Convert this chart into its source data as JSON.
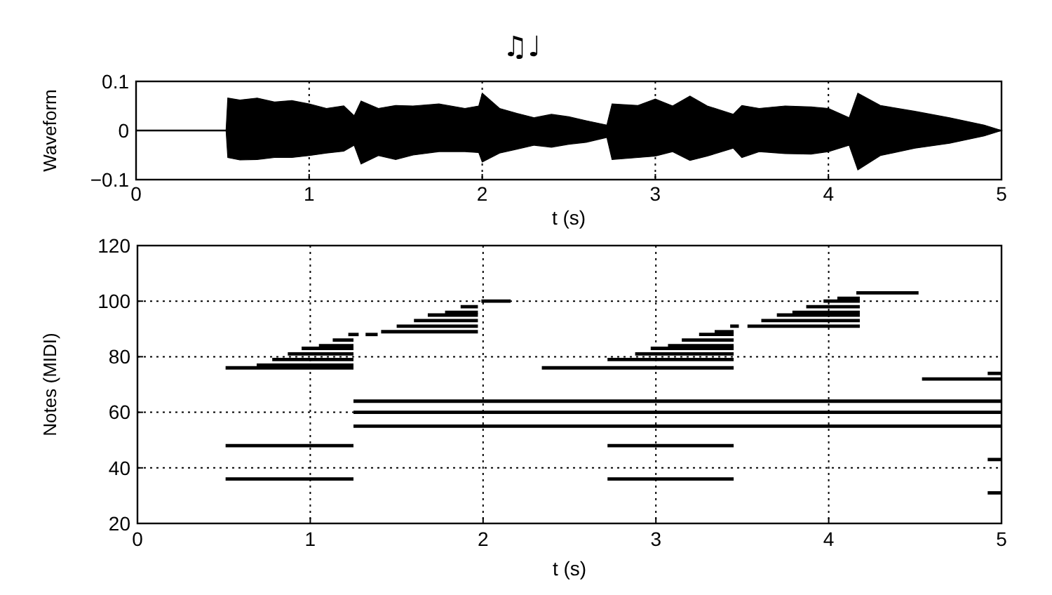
{
  "chart_data": [
    {
      "type": "line",
      "title": "♫♩",
      "xlabel": "t (s)",
      "ylabel": "Waveform",
      "x": [
        0,
        0.52,
        0.53,
        0.6,
        0.7,
        0.8,
        0.9,
        1.0,
        1.1,
        1.2,
        1.26,
        1.3,
        1.4,
        1.5,
        1.6,
        1.75,
        1.9,
        1.98,
        2.0,
        2.1,
        2.2,
        2.3,
        2.4,
        2.5,
        2.6,
        2.72,
        2.75,
        2.9,
        3.0,
        3.1,
        3.2,
        3.3,
        3.45,
        3.5,
        3.6,
        3.75,
        3.9,
        4.0,
        4.12,
        4.17,
        4.3,
        4.5,
        4.7,
        4.9,
        5.0
      ],
      "series": [
        {
          "color": "#000000",
          "values": [
            0,
            0,
            0,
            0,
            0,
            0,
            0,
            0,
            0,
            0,
            0,
            0,
            0,
            0,
            0,
            0,
            0,
            0,
            0,
            0,
            0,
            0,
            0,
            0,
            0,
            0,
            0,
            0,
            0,
            0,
            0,
            0,
            0,
            0,
            0,
            0,
            0,
            0,
            0,
            0,
            0,
            0,
            0,
            0,
            0
          ],
          "upper": [
            0,
            0,
            0.066,
            0.062,
            0.066,
            0.058,
            0.061,
            0.054,
            0.045,
            0.05,
            0.03,
            0.06,
            0.045,
            0.051,
            0.05,
            0.054,
            0.045,
            0.05,
            0.076,
            0.045,
            0.035,
            0.026,
            0.033,
            0.028,
            0.02,
            0.011,
            0.054,
            0.051,
            0.064,
            0.05,
            0.07,
            0.05,
            0.033,
            0.051,
            0.045,
            0.05,
            0.048,
            0.045,
            0.026,
            0.076,
            0.051,
            0.039,
            0.026,
            0.011,
            0
          ],
          "lower": [
            0,
            0,
            -0.055,
            -0.06,
            -0.059,
            -0.055,
            -0.055,
            -0.051,
            -0.046,
            -0.042,
            -0.03,
            -0.068,
            -0.051,
            -0.059,
            -0.05,
            -0.043,
            -0.043,
            -0.045,
            -0.064,
            -0.046,
            -0.038,
            -0.03,
            -0.034,
            -0.028,
            -0.024,
            -0.014,
            -0.059,
            -0.055,
            -0.052,
            -0.043,
            -0.061,
            -0.052,
            -0.036,
            -0.055,
            -0.043,
            -0.047,
            -0.048,
            -0.043,
            -0.03,
            -0.08,
            -0.051,
            -0.036,
            -0.026,
            -0.011,
            0
          ]
        }
      ],
      "xlim": [
        0,
        5
      ],
      "ylim": [
        -0.1,
        0.1
      ],
      "xticks": [
        0,
        1,
        2,
        3,
        4,
        5
      ],
      "yticks": [
        {
          "value": -0.1,
          "label": "−0.1"
        },
        0,
        0.1
      ],
      "grid": "x"
    },
    {
      "type": "line",
      "xlabel": "t (s)",
      "ylabel": "Notes (MIDI)",
      "color": "#000000",
      "series": [
        {
          "x": [
            0.51,
            1.25
          ],
          "values": [
            76,
            76
          ]
        },
        {
          "x": [
            0.69,
            1.25
          ],
          "values": [
            77,
            77
          ]
        },
        {
          "x": [
            0.78,
            1.25
          ],
          "values": [
            79,
            79
          ]
        },
        {
          "x": [
            0.87,
            1.25
          ],
          "values": [
            81,
            81
          ]
        },
        {
          "x": [
            0.95,
            1.25
          ],
          "values": [
            83,
            83
          ]
        },
        {
          "x": [
            1.05,
            1.25
          ],
          "values": [
            84,
            84
          ]
        },
        {
          "x": [
            1.13,
            1.25
          ],
          "values": [
            86,
            86
          ]
        },
        {
          "x": [
            1.22,
            1.28
          ],
          "values": [
            88,
            88
          ]
        },
        {
          "x": [
            1.32,
            1.39
          ],
          "values": [
            88,
            88
          ]
        },
        {
          "x": [
            1.41,
            1.97
          ],
          "values": [
            89,
            89
          ]
        },
        {
          "x": [
            1.5,
            1.97
          ],
          "values": [
            91,
            91
          ]
        },
        {
          "x": [
            1.6,
            1.97
          ],
          "values": [
            93,
            93
          ]
        },
        {
          "x": [
            1.68,
            1.97
          ],
          "values": [
            95,
            95
          ]
        },
        {
          "x": [
            1.78,
            1.97
          ],
          "values": [
            96,
            96
          ]
        },
        {
          "x": [
            1.87,
            1.97
          ],
          "values": [
            98,
            98
          ]
        },
        {
          "x": [
            1.99,
            2.16
          ],
          "values": [
            100,
            100
          ]
        },
        {
          "x": [
            0.51,
            1.25
          ],
          "values": [
            48,
            48
          ]
        },
        {
          "x": [
            0.51,
            1.25
          ],
          "values": [
            36,
            36
          ]
        },
        {
          "x": [
            1.25,
            5
          ],
          "values": [
            55,
            55
          ]
        },
        {
          "x": [
            1.25,
            5
          ],
          "values": [
            60,
            60
          ]
        },
        {
          "x": [
            1.25,
            5
          ],
          "values": [
            64,
            64
          ]
        },
        {
          "x": [
            2.34,
            3.45
          ],
          "values": [
            76,
            76
          ]
        },
        {
          "x": [
            2.72,
            3.45
          ],
          "values": [
            79,
            79
          ]
        },
        {
          "x": [
            2.88,
            3.45
          ],
          "values": [
            81,
            81
          ]
        },
        {
          "x": [
            2.97,
            3.45
          ],
          "values": [
            83,
            83
          ]
        },
        {
          "x": [
            3.07,
            3.45
          ],
          "values": [
            84,
            84
          ]
        },
        {
          "x": [
            3.15,
            3.45
          ],
          "values": [
            86,
            86
          ]
        },
        {
          "x": [
            3.25,
            3.45
          ],
          "values": [
            88,
            88
          ]
        },
        {
          "x": [
            3.34,
            3.45
          ],
          "values": [
            89,
            89
          ]
        },
        {
          "x": [
            3.43,
            3.48
          ],
          "values": [
            91,
            91
          ]
        },
        {
          "x": [
            3.53,
            4.18
          ],
          "values": [
            91,
            91
          ]
        },
        {
          "x": [
            3.61,
            4.18
          ],
          "values": [
            93,
            93
          ]
        },
        {
          "x": [
            3.7,
            4.18
          ],
          "values": [
            95,
            95
          ]
        },
        {
          "x": [
            3.79,
            4.18
          ],
          "values": [
            96,
            96
          ]
        },
        {
          "x": [
            3.87,
            4.18
          ],
          "values": [
            98,
            98
          ]
        },
        {
          "x": [
            3.97,
            4.18
          ],
          "values": [
            100,
            100
          ]
        },
        {
          "x": [
            4.05,
            4.18
          ],
          "values": [
            101,
            101
          ]
        },
        {
          "x": [
            4.16,
            4.52
          ],
          "values": [
            103,
            103
          ]
        },
        {
          "x": [
            2.72,
            3.45
          ],
          "values": [
            48,
            48
          ]
        },
        {
          "x": [
            2.72,
            3.45
          ],
          "values": [
            36,
            36
          ]
        },
        {
          "x": [
            4.54,
            5
          ],
          "values": [
            72,
            72
          ]
        },
        {
          "x": [
            4.92,
            5
          ],
          "values": [
            74,
            74
          ]
        },
        {
          "x": [
            4.92,
            5
          ],
          "values": [
            43,
            43
          ]
        },
        {
          "x": [
            4.92,
            5
          ],
          "values": [
            31,
            31
          ]
        }
      ],
      "xlim": [
        0,
        5
      ],
      "ylim": [
        20,
        120
      ],
      "xticks": [
        0,
        1,
        2,
        3,
        4,
        5
      ],
      "yticks": [
        20,
        40,
        60,
        80,
        100,
        120
      ],
      "grid": true
    }
  ]
}
